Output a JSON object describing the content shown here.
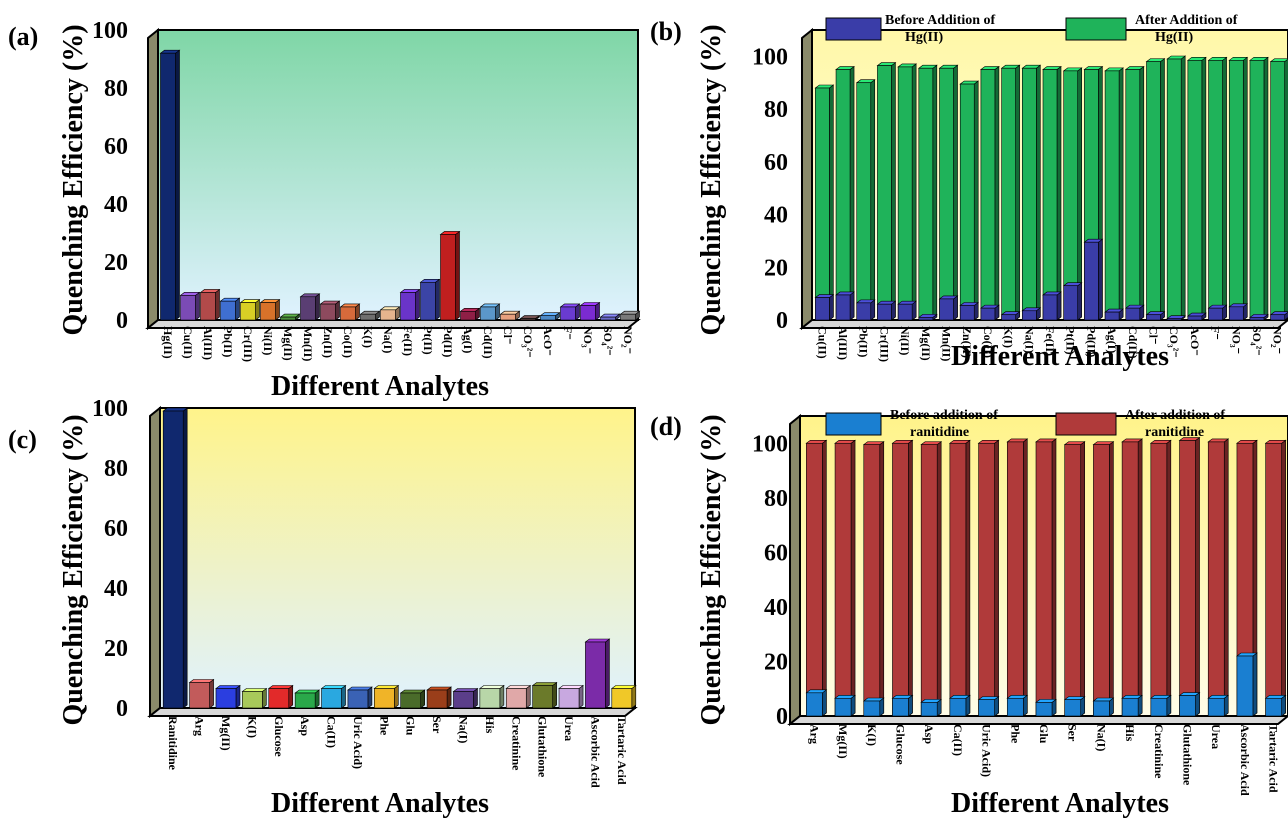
{
  "chart_data": [
    {
      "panel": "(a)",
      "type": "bar",
      "ylabel": "Quenching Efficiency (%)",
      "xlabel": "Different Analytes",
      "ylim": [
        0,
        100
      ],
      "yticks": [
        0,
        20,
        40,
        60,
        80,
        100
      ],
      "background": [
        "#7fd6a6",
        "#d9f0ff"
      ],
      "categories": [
        "Hg(II)",
        "Cu(II)",
        "Al(III)",
        "Pb(II)",
        "Cr(III)",
        "Ni(II)",
        "Mg(II)",
        "Mn(II)",
        "Zn(II)",
        "Co(II)",
        "K(I)",
        "Na(I)",
        "Fe(II)",
        "Pt(II)",
        "Pd(II)",
        "Ag(I)",
        "Cd(II)",
        "Cl⁻",
        "CO₃²⁻",
        "AcO⁻",
        "F⁻",
        "NO₃⁻",
        "SO₄²⁻",
        "NO₂⁻"
      ],
      "values": [
        92,
        8.5,
        9.5,
        6.5,
        6,
        6,
        1,
        8,
        5.5,
        4.5,
        2,
        3.5,
        9.5,
        13,
        29.5,
        3,
        4.5,
        2,
        0.5,
        1.5,
        4.5,
        5,
        1,
        2
      ],
      "colors": [
        "#10286e",
        "#7b4bb5",
        "#b24a4a",
        "#3f6fd1",
        "#d8cf25",
        "#d8722a",
        "#4a8c3a",
        "#5a3e73",
        "#8d4a5e",
        "#d66a3b",
        "#6f6f6f",
        "#e6b48e",
        "#6a34c9",
        "#3b44a6",
        "#c01f1f",
        "#8f1f46",
        "#5b97c9",
        "#e8a07e",
        "#5a3f3f",
        "#4d8ac7",
        "#6a3bd1",
        "#7b2bd1",
        "#6a6ac7",
        "#7a7a7a"
      ]
    },
    {
      "panel": "(b)",
      "type": "bar",
      "ylabel": "Quenching Efficiency (%)",
      "xlabel": "Different Analytes",
      "ylim": [
        0,
        110
      ],
      "yticks": [
        0,
        20,
        40,
        60,
        80,
        100
      ],
      "background": [
        "#fff8b0",
        "#fffce0"
      ],
      "categories": [
        "Cu(II)",
        "Al(III)",
        "Pb(II)",
        "Cr(III)",
        "Ni(II)",
        "Mg(II)",
        "Mn(II)",
        "Zn(II)",
        "Co(II)",
        "K(I)",
        "Na(I)",
        "Fe(II)",
        "Pt(II)",
        "Pd(II)",
        "Ag(I)",
        "Cd(II)",
        "Cl⁻",
        "CO₃²⁻",
        "AcO⁻",
        "F⁻",
        "NO₃⁻",
        "SO₄²⁻",
        "NO₂⁻"
      ],
      "series": [
        {
          "name": "Before Addition of Hg(II)",
          "color": "#3a3da8",
          "values": [
            8.5,
            9.5,
            6.5,
            6,
            6,
            1,
            8,
            5.5,
            4.5,
            2,
            3.5,
            9.5,
            13,
            29.5,
            3,
            4.5,
            2,
            0.5,
            1.5,
            4.5,
            5,
            1,
            2
          ]
        },
        {
          "name": "After Addition of Hg(II)",
          "color": "#1fb35a",
          "values": [
            88,
            95,
            90,
            96.5,
            96,
            95.5,
            95.5,
            89.5,
            95,
            95.5,
            95.5,
            95,
            94.5,
            95,
            94.5,
            95,
            98,
            99,
            98.5,
            98.5,
            98.5,
            98.5,
            98
          ]
        }
      ],
      "legend": {
        "before": "Before Addition of Hg(II)",
        "after": "After Addition of Hg(II)"
      }
    },
    {
      "panel": "(c)",
      "type": "bar",
      "ylabel": "Quenching Efficiency (%)",
      "xlabel": "Different Analytes",
      "ylim": [
        0,
        100
      ],
      "yticks": [
        0,
        20,
        40,
        60,
        80,
        100
      ],
      "background": [
        "#fff69a",
        "#ddf2ff"
      ],
      "categories": [
        "Ranitidine",
        "Arg",
        "Mg(II)",
        "K(I)",
        "Glucose",
        "Asp",
        "Ca(II)",
        "Uric Acid)",
        "Phe",
        "Glu",
        "Ser",
        "Na(I)",
        "His",
        "Creatinine",
        "Glutathione",
        "Urea",
        "Ascorbic Acid",
        "Tartaric Acid"
      ],
      "values": [
        99,
        8.5,
        6.5,
        5.5,
        6.5,
        5,
        6.5,
        6,
        6.5,
        5,
        6,
        5.5,
        6.5,
        6.5,
        7.5,
        6.5,
        22,
        6.5
      ],
      "colors": [
        "#10286e",
        "#c25b5b",
        "#2b3ee0",
        "#a8c95a",
        "#e22a2a",
        "#2aa84a",
        "#2aa8e0",
        "#3a62b5",
        "#f0b428",
        "#4a6b2a",
        "#9a3e1a",
        "#5b3e8a",
        "#b8d6a8",
        "#e0a8a8",
        "#6b7a2a",
        "#c8a8e0",
        "#7b2ba8",
        "#f0c828"
      ]
    },
    {
      "panel": "(d)",
      "type": "bar",
      "ylabel": "Quenching Efficiency (%)",
      "xlabel": "Different Analytes",
      "ylim": [
        0,
        110
      ],
      "yticks": [
        0,
        20,
        40,
        60,
        80,
        100
      ],
      "background": [
        "#fff69a",
        "#fffce0"
      ],
      "categories": [
        "Arg",
        "Mg(II)",
        "K(I)",
        "Glucose",
        "Asp",
        "Ca(II)",
        "Uric Acid)",
        "Phe",
        "Glu",
        "Ser",
        "Na(I)",
        "His",
        "Creatinine",
        "Glutathione",
        "Urea",
        "Ascorbic Acid",
        "Tartaric Acid"
      ],
      "series": [
        {
          "name": "Before addition of ranitidine",
          "color": "#1a7fd1",
          "values": [
            8.5,
            6.5,
            5.5,
            6.5,
            5,
            6.5,
            6,
            6.5,
            5,
            6,
            5.5,
            6.5,
            6.5,
            7.5,
            6.5,
            22,
            6.5
          ]
        },
        {
          "name": "After addition of ranitidine",
          "color": "#b03a3a",
          "values": [
            100,
            100,
            99.5,
            100,
            99.5,
            100,
            100,
            100.5,
            100.5,
            99.5,
            99.5,
            100.5,
            100,
            101,
            100.5,
            100,
            100
          ]
        }
      ],
      "legend": {
        "before": "Before addition of ranitidine",
        "after": "After addition of ranitidine"
      }
    }
  ]
}
